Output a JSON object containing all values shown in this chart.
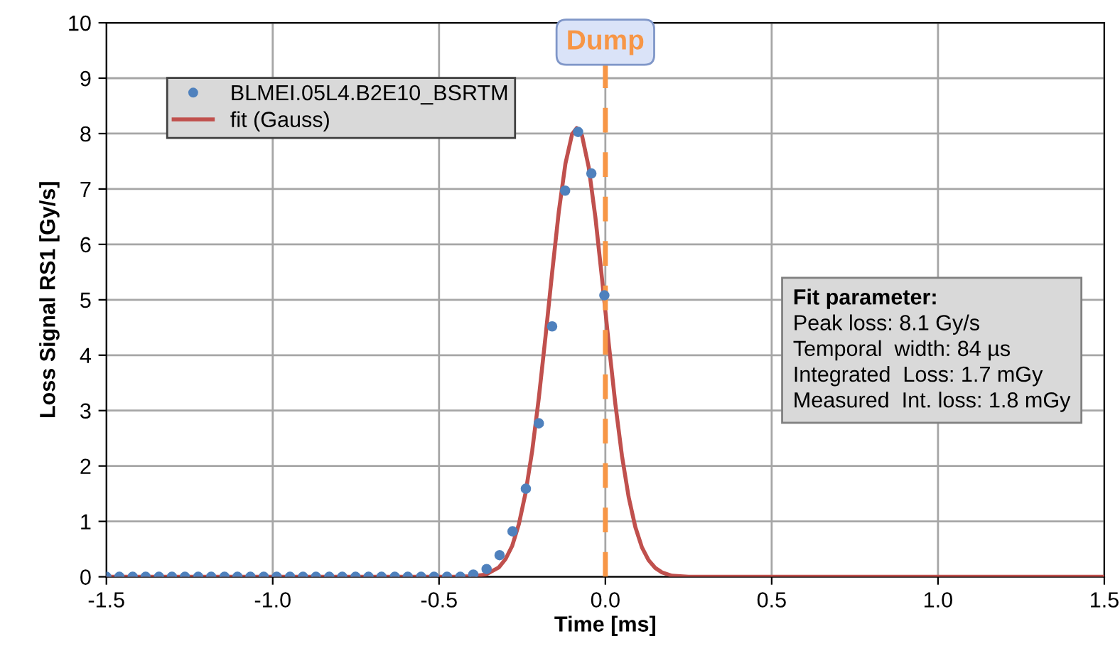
{
  "chart_data": {
    "type": "scatter",
    "xlabel": "Time [ms]",
    "ylabel": "Loss Signal RS1 [Gy/s]",
    "series": [
      {
        "name": "BLMEI.05L4.B2E10_BSRTM",
        "marker": "circle",
        "color": "#4f81bd",
        "x": [
          -1.5,
          -1.461,
          -1.421,
          -1.382,
          -1.342,
          -1.303,
          -1.264,
          -1.224,
          -1.185,
          -1.145,
          -1.106,
          -1.067,
          -1.027,
          -0.988,
          -0.948,
          -0.909,
          -0.87,
          -0.83,
          -0.791,
          -0.751,
          -0.712,
          -0.673,
          -0.633,
          -0.594,
          -0.554,
          -0.515,
          -0.476,
          -0.436,
          -0.397,
          -0.357,
          -0.318,
          -0.279,
          -0.239,
          -0.2,
          -0.16,
          -0.121,
          -0.082,
          -0.042,
          -0.003
        ],
        "values": [
          0,
          0,
          0,
          0,
          0,
          0,
          0,
          0,
          0,
          0,
          0,
          0,
          0,
          0,
          0,
          0,
          0,
          0,
          0,
          0,
          0,
          0,
          0,
          0,
          0,
          0,
          0,
          0,
          0.04,
          0.14,
          0.39,
          0.82,
          1.59,
          2.77,
          4.52,
          6.97,
          8.03,
          7.28,
          5.08
        ]
      },
      {
        "name": "fit (Gauss)",
        "type": "line",
        "marker": "none",
        "line_style": "solid",
        "color": "#c0504d",
        "x": [
          -1.5,
          -0.6,
          -0.45,
          -0.4,
          -0.36,
          -0.32,
          -0.3,
          -0.28,
          -0.26,
          -0.24,
          -0.22,
          -0.2,
          -0.18,
          -0.16,
          -0.14,
          -0.12,
          -0.1,
          -0.086,
          -0.07,
          -0.05,
          -0.03,
          -0.01,
          0.01,
          0.03,
          0.05,
          0.07,
          0.09,
          0.11,
          0.13,
          0.15,
          0.17,
          0.2,
          0.25,
          0.3,
          1.5
        ],
        "values": [
          0,
          0,
          0,
          0.01,
          0.04,
          0.17,
          0.32,
          0.56,
          0.95,
          1.51,
          2.27,
          3.23,
          4.33,
          5.49,
          6.59,
          7.46,
          7.99,
          8.1,
          7.96,
          7.39,
          6.49,
          5.38,
          4.22,
          3.12,
          2.18,
          1.44,
          0.9,
          0.53,
          0.3,
          0.16,
          0.08,
          0.02,
          0,
          0,
          0
        ]
      }
    ],
    "xlim": [
      -1.5,
      1.5
    ],
    "xticks": [
      -1.5,
      {
        "value": -1.0,
        "label": "-1.0"
      },
      -0.5,
      {
        "value": 0.0,
        "label": "0.0"
      },
      0.5,
      {
        "value": 1.0,
        "label": "1.0"
      },
      1.5
    ],
    "ylim": [
      0,
      10
    ],
    "yticks": [
      0,
      1,
      2,
      3,
      4,
      5,
      6,
      7,
      8,
      9,
      10
    ],
    "grid": true,
    "legend": "top left",
    "ref_lines": [
      {
        "axis": "x",
        "value": 0,
        "label": "Dump",
        "color": "#f79646",
        "line_style": "dashed"
      }
    ],
    "annotations": [
      "Fit parameter:",
      "Peak loss: 8.1 Gy/s\nTemporal  width: 84 µs\nIntegrated  Loss: 1.7 mGy\nMeasured  Int. loss: 1.8 mGy"
    ]
  }
}
